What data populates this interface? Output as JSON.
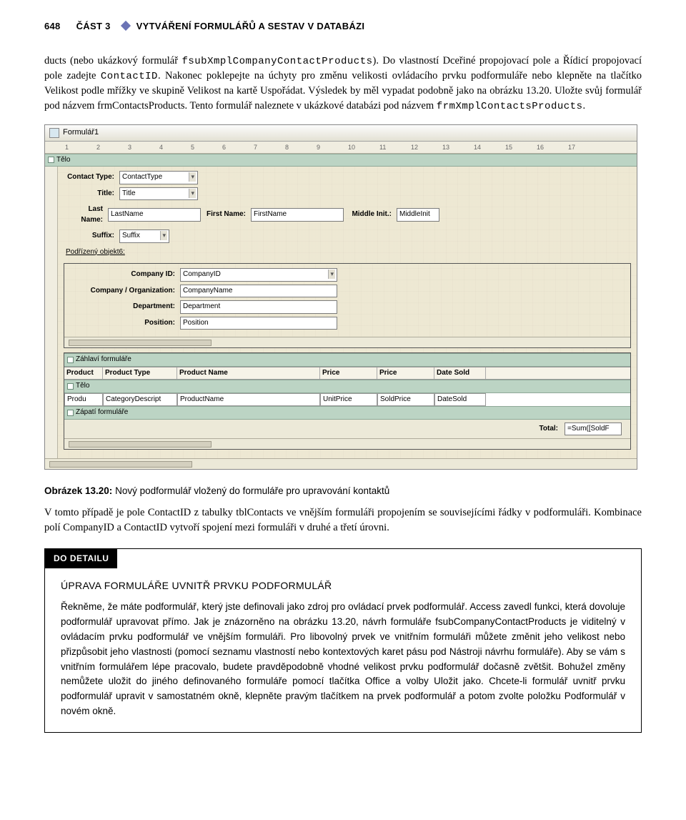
{
  "header": {
    "page_number": "648",
    "part_label": "ČÁST 3",
    "title": "VYTVÁŘENÍ FORMULÁŘŮ A SESTAV V DATABÁZI"
  },
  "para1": {
    "chunk1": "ducts (nebo ukázkový formulář ",
    "code1": "fsubXmplCompanyContactProducts",
    "chunk2": "). Do vlastností Dceřiné propojovací pole a Řídicí propojovací pole zadejte ",
    "code2": "ContactID",
    "chunk3": ". Nakonec poklepejte na úchyty pro změnu velikosti ovládacího prvku podformuláře nebo klepněte na tlačítko Velikost podle mřížky ve skupině Velikost na kartě Uspořádat. Výsledek by měl vypadat podobně jako na obrázku 13.20. Uložte svůj formulář pod názvem frmContactsProducts. Tento formulář naleznete v ukázkové databázi pod názvem ",
    "code3": "frmXmplContactsProducts",
    "chunk4": "."
  },
  "screenshot": {
    "win_title": "Formulář1",
    "ruler_marks": [
      "1",
      "2",
      "3",
      "4",
      "5",
      "6",
      "7",
      "8",
      "9",
      "10",
      "11",
      "12",
      "13",
      "14",
      "15",
      "16",
      "17"
    ],
    "section_body": "Tělo",
    "row1": {
      "label": "Contact Type:",
      "field": "ContactType",
      "label_w": 74,
      "field_w": 110
    },
    "row2": {
      "label": "Title:",
      "field": "Title",
      "label_w": 74,
      "field_w": 110
    },
    "row3": {
      "l1": "Last Name:",
      "f1": "LastName",
      "l2": "First Name:",
      "f2": "FirstName",
      "l3": "Middle Init.:",
      "f3": "MiddleInit"
    },
    "row4": {
      "label": "Suffix:",
      "field": "Suffix",
      "label_w": 74,
      "field_w": 70
    },
    "sub1_label": "Podřízený objekt6:",
    "sub1_rows": [
      {
        "label": "Company ID:",
        "field": "CompanyID"
      },
      {
        "label": "Company / Organization:",
        "field": "CompanyName"
      },
      {
        "label": "Department:",
        "field": "Department"
      },
      {
        "label": "Position:",
        "field": "Position"
      }
    ],
    "sub2": {
      "section_header": "Záhlaví formuláře",
      "section_body": "Tělo",
      "section_footer": "Zápatí formuláře",
      "cols": [
        "Product",
        "Product Type",
        "Product Name",
        "Price",
        "Price",
        "Date Sold"
      ],
      "fields": [
        "Produ",
        "CategoryDescript",
        "ProductName",
        "UnitPrice",
        "SoldPrice",
        "DateSold"
      ],
      "widths": [
        54,
        104,
        200,
        80,
        80,
        72
      ],
      "total_label": "Total:",
      "total_field": "=Sum([SoldF"
    }
  },
  "caption": {
    "lead": "Obrázek 13.20:",
    "text": " Nový podformulář vložený do formuláře pro upravování kontaktů"
  },
  "para2": "V tomto případě je pole ContactID z tabulky tblContacts ve vnějším formuláři propojením se souvisejícími řádky v podformuláři. Kombinace polí CompanyID a ContactID vytvoří spojení mezi formuláři v druhé a třetí úrovni.",
  "detail": {
    "tab": "DO DETAILU",
    "heading": "ÚPRAVA FORMULÁŘE UVNITŘ PRVKU PODFORMULÁŘ",
    "body": "Řekněme, že máte podformulář, který jste definovali jako zdroj pro ovládací prvek podformulář. Access  zavedl funkci, která dovoluje podformulář upravovat přímo. Jak je znázorněno na obrázku 13.20, návrh formuláře fsubCompanyContactProducts je viditelný v ovládacím prvku podformulář ve vnějším formuláři. Pro libovolný prvek ve vnitřním formuláři můžete změnit jeho velikost nebo přizpůsobit jeho vlastnosti (pomocí seznamu vlastností nebo kontextových karet pásu pod Nástroji návrhu formuláře). Aby se vám s vnitřním formulářem lépe pracovalo, budete pravděpodobně vhodné velikost prvku podformulář dočasně zvětšit.  Bohužel změny nemůžete uložit do jiného definovaného formuláře pomocí tlačítka Office a volby Uložit jako. Chcete-li formulář uvnitř prvku podformulář upravit v samostatném okně, klepněte pravým tlačítkem na prvek podformulář a potom zvolte položku Podformulář v novém okně."
  }
}
